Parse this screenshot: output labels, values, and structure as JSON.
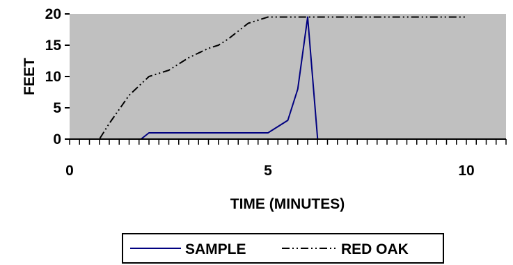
{
  "chart_data": {
    "type": "line",
    "xlabel": "TIME (MINUTES)",
    "ylabel": "FEET",
    "xlim": [
      0,
      11
    ],
    "ylim": [
      0,
      20
    ],
    "x_ticks": [
      0,
      5,
      10
    ],
    "y_ticks": [
      0,
      5,
      10,
      15,
      20
    ],
    "x_minor_step": 0.25,
    "plot_background": "#c0c0c0",
    "grid": false,
    "legend_position": "bottom",
    "series": [
      {
        "name": "SAMPLE",
        "color": "#000080",
        "dash": "solid",
        "x": [
          0.3,
          1.8,
          2.0,
          5.0,
          5.5,
          5.75,
          6.0,
          6.25
        ],
        "y": [
          0,
          0,
          1,
          1,
          3,
          8,
          19.5,
          0
        ]
      },
      {
        "name": "RED OAK",
        "color": "#000000",
        "dash": "dash-dot-dot",
        "x": [
          0.3,
          0.75,
          1.0,
          1.5,
          2.0,
          2.5,
          3.0,
          3.5,
          3.75,
          4.0,
          4.5,
          5.0,
          5.5,
          6.0,
          10.0
        ],
        "y": [
          0,
          0,
          2.5,
          7,
          10,
          11,
          13,
          14.5,
          15,
          16,
          18.5,
          19.5,
          19.5,
          19.5,
          19.5
        ]
      }
    ]
  }
}
